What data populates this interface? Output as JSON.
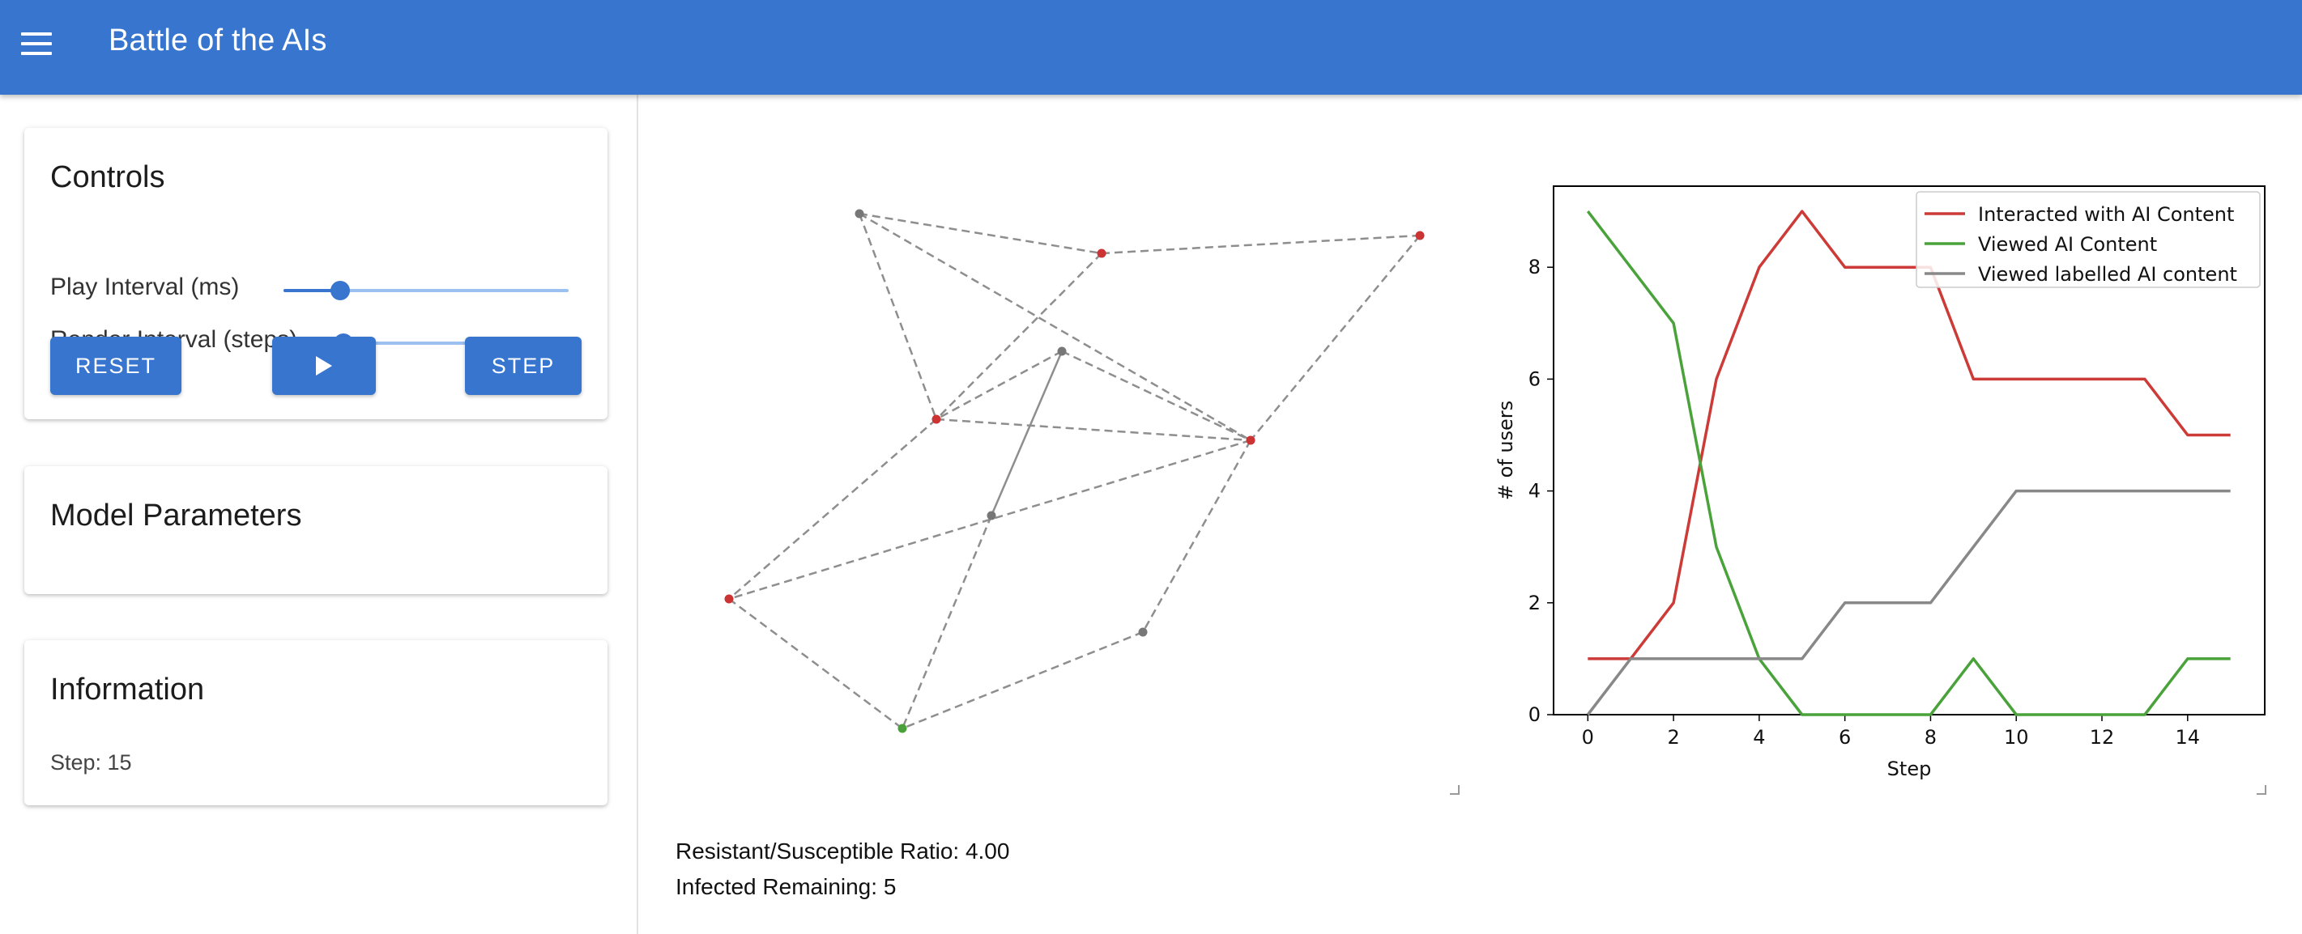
{
  "header": {
    "title": "Battle of the AIs",
    "menu_icon": "menu-icon",
    "color": "#3875ce"
  },
  "controls": {
    "title": "Controls",
    "play_interval_label": "Play Interval (ms)",
    "play_interval_fraction": 0.2,
    "render_interval_label": "Render Interval (steps)",
    "render_interval_fraction": 0.0,
    "reset_label": "RESET",
    "play_icon": "play-icon",
    "step_label": "STEP"
  },
  "model_parameters": {
    "title": "Model Parameters"
  },
  "information": {
    "title": "Information",
    "step_text": "Step: 15"
  },
  "stats": {
    "ratio_text": "Resistant/Susceptible Ratio: 4.00",
    "infected_text": "Infected Remaining: 5"
  },
  "network": {
    "colors": {
      "red": "#cc3333",
      "green": "#4aa03a",
      "grey": "#777777"
    },
    "nodes": [
      {
        "id": "n0",
        "state": "grey"
      },
      {
        "id": "n1",
        "state": "red"
      },
      {
        "id": "n2",
        "state": "red"
      },
      {
        "id": "n3",
        "state": "grey"
      },
      {
        "id": "n4",
        "state": "red"
      },
      {
        "id": "n5",
        "state": "red"
      },
      {
        "id": "n6",
        "state": "grey"
      },
      {
        "id": "n7",
        "state": "red"
      },
      {
        "id": "n8",
        "state": "grey"
      },
      {
        "id": "n9",
        "state": "green"
      }
    ],
    "edges": [
      [
        "n0",
        "n1"
      ],
      [
        "n0",
        "n4"
      ],
      [
        "n0",
        "n5"
      ],
      [
        "n1",
        "n2"
      ],
      [
        "n1",
        "n4"
      ],
      [
        "n3",
        "n4"
      ],
      [
        "n3",
        "n5"
      ],
      [
        "n3",
        "n6"
      ],
      [
        "n4",
        "n5"
      ],
      [
        "n4",
        "n7"
      ],
      [
        "n2",
        "n5"
      ],
      [
        "n5",
        "n7"
      ],
      [
        "n5",
        "n8"
      ],
      [
        "n6",
        "n9"
      ],
      [
        "n7",
        "n9"
      ],
      [
        "n8",
        "n9"
      ]
    ],
    "solid_edges": [
      [
        "n3",
        "n6"
      ]
    ]
  },
  "chart_data": {
    "type": "line",
    "xlabel": "Step",
    "ylabel": "# of users",
    "xlim": [
      -0.8,
      15.8
    ],
    "ylim": [
      0,
      9.45
    ],
    "xticks": [
      0,
      2,
      4,
      6,
      8,
      10,
      12,
      14
    ],
    "yticks": [
      0,
      2,
      4,
      6,
      8
    ],
    "legend_position": "top-right",
    "x": [
      0,
      1,
      2,
      3,
      4,
      5,
      6,
      7,
      8,
      9,
      10,
      11,
      12,
      13,
      14,
      15
    ],
    "series": [
      {
        "name": "Interacted with AI Content",
        "color": "#cc3b37",
        "values": [
          1,
          1,
          2,
          6,
          8,
          9,
          8,
          8,
          8,
          6,
          6,
          6,
          6,
          6,
          5,
          5
        ]
      },
      {
        "name": "Viewed AI Content",
        "color": "#4aa23b",
        "values": [
          9,
          8,
          7,
          3,
          1,
          0,
          0,
          0,
          0,
          1,
          0,
          0,
          0,
          0,
          1,
          1
        ]
      },
      {
        "name": "Viewed labelled AI content",
        "color": "#888888",
        "values": [
          0,
          1,
          1,
          1,
          1,
          1,
          2,
          2,
          2,
          3,
          4,
          4,
          4,
          4,
          4,
          4
        ]
      }
    ]
  }
}
